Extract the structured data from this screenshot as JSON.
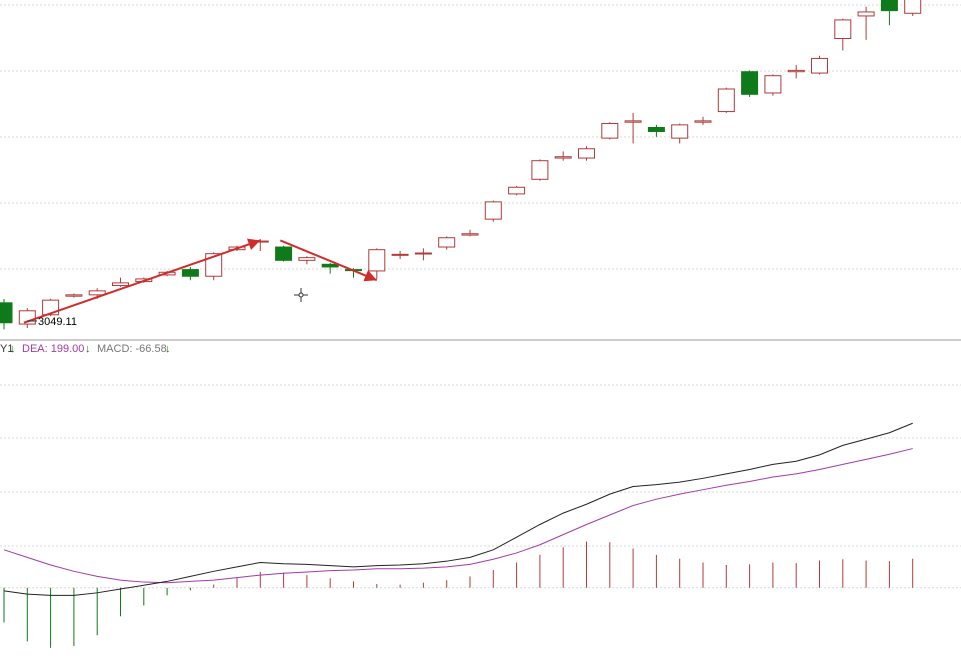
{
  "colors": {
    "up": "#b03a3a",
    "down": "#0f7a1a",
    "arrow": "#d22b2b",
    "dif_line": "#222222",
    "dea_line": "#a23aa8",
    "grid": "#d8d8d8",
    "divider": "#999999",
    "label_gray": "#777777",
    "dea_label": "#a23aa8"
  },
  "indicator_bar": {
    "dif_fragment": "Y1",
    "dea_text": "DEA: 199.00",
    "macd_text": "MACD: -66.58",
    "arrow_glyph": "↓"
  },
  "price_annotation": "3049.11",
  "crosshair_icon": "crosshair-icon",
  "chart_data": [
    {
      "type": "candlestick",
      "title": "",
      "annotations": [
        "3049.11"
      ],
      "candles": [
        {
          "o": 3064,
          "c": 3049,
          "h": 3067,
          "l": 3044
        },
        {
          "o": 3048,
          "c": 3058,
          "h": 3060,
          "l": 3045
        },
        {
          "o": 3055,
          "c": 3066,
          "h": 3067,
          "l": 3054
        },
        {
          "o": 3069,
          "c": 3070,
          "h": 3071,
          "l": 3068
        },
        {
          "o": 3070,
          "c": 3073,
          "h": 3075,
          "l": 3067
        },
        {
          "o": 3077,
          "c": 3079,
          "h": 3083,
          "l": 3076
        },
        {
          "o": 3080,
          "c": 3082,
          "h": 3083,
          "l": 3079
        },
        {
          "o": 3085,
          "c": 3087,
          "h": 3088,
          "l": 3084
        },
        {
          "o": 3089,
          "c": 3084,
          "h": 3091,
          "l": 3081
        },
        {
          "o": 3084,
          "c": 3101,
          "h": 3102,
          "l": 3081
        },
        {
          "o": 3104,
          "c": 3106,
          "h": 3107,
          "l": 3103
        },
        {
          "o": 3110,
          "c": 3110.5,
          "h": 3112,
          "l": 3103
        },
        {
          "o": 3106,
          "c": 3096,
          "h": 3107,
          "l": 3095
        },
        {
          "o": 3096,
          "c": 3098,
          "h": 3099,
          "l": 3093
        },
        {
          "o": 3093,
          "c": 3091,
          "h": 3094,
          "l": 3086
        },
        {
          "o": 3089,
          "c": 3088.5,
          "h": 3090,
          "l": 3083
        },
        {
          "o": 3088,
          "c": 3104,
          "h": 3105,
          "l": 3082
        },
        {
          "o": 3100,
          "c": 3100.5,
          "h": 3103,
          "l": 3097
        },
        {
          "o": 3101,
          "c": 3101.5,
          "h": 3105,
          "l": 3096
        },
        {
          "o": 3106,
          "c": 3113,
          "h": 3114,
          "l": 3104
        },
        {
          "o": 3115,
          "c": 3116,
          "h": 3119,
          "l": 3114
        },
        {
          "o": 3127,
          "c": 3140,
          "h": 3141,
          "l": 3125
        },
        {
          "o": 3146,
          "c": 3151,
          "h": 3152,
          "l": 3145
        },
        {
          "o": 3157,
          "c": 3171,
          "h": 3172,
          "l": 3156
        },
        {
          "o": 3173,
          "c": 3174,
          "h": 3178,
          "l": 3171
        },
        {
          "o": 3173,
          "c": 3180,
          "h": 3182,
          "l": 3171
        },
        {
          "o": 3188,
          "c": 3199,
          "h": 3200,
          "l": 3187
        },
        {
          "o": 3200,
          "c": 3201,
          "h": 3207,
          "l": 3184
        },
        {
          "o": 3196,
          "c": 3193,
          "h": 3198,
          "l": 3189
        },
        {
          "o": 3188,
          "c": 3198,
          "h": 3199,
          "l": 3184
        },
        {
          "o": 3200,
          "c": 3201,
          "h": 3204,
          "l": 3198
        },
        {
          "o": 3208,
          "c": 3225,
          "h": 3226,
          "l": 3207
        },
        {
          "o": 3238,
          "c": 3221,
          "h": 3239,
          "l": 3219
        },
        {
          "o": 3222,
          "c": 3235,
          "h": 3236,
          "l": 3220
        },
        {
          "o": 3238,
          "c": 3239,
          "h": 3243,
          "l": 3233
        },
        {
          "o": 3237,
          "c": 3248,
          "h": 3250,
          "l": 3236
        },
        {
          "o": 3263,
          "c": 3277,
          "h": 3278,
          "l": 3254
        },
        {
          "o": 3280,
          "c": 3283,
          "h": 3287,
          "l": 3262
        },
        {
          "o": 3293,
          "c": 3284,
          "h": 3296,
          "l": 3273
        },
        {
          "o": 3282,
          "c": 3302,
          "h": 3307,
          "l": 3280
        }
      ],
      "ylim": [
        3036,
        3292
      ],
      "grid": "horizontal",
      "arrows": [
        {
          "from": {
            "i": 0,
            "y": 3049
          },
          "to": {
            "i": 11,
            "y": 3111
          }
        },
        {
          "from": {
            "i": 11,
            "y": 3111
          },
          "to": {
            "i": 16,
            "y": 3081
          }
        }
      ]
    },
    {
      "type": "macd",
      "series": [
        {
          "name": "DEA",
          "values": [
            60,
            48,
            36,
            26,
            18,
            12,
            9,
            8,
            10,
            12,
            16,
            20,
            23,
            25,
            27,
            28,
            30,
            30,
            31,
            33,
            37,
            45,
            55,
            68,
            84,
            100,
            115,
            130,
            140,
            148,
            155,
            162,
            168,
            175,
            180,
            187,
            195,
            203,
            211,
            220
          ]
        },
        {
          "values": [
            -5,
            -10,
            -12,
            -12,
            -8,
            -2,
            4,
            10,
            18,
            26,
            33,
            40,
            38,
            37,
            35,
            33,
            35,
            36,
            38,
            42,
            48,
            60,
            80,
            100,
            118,
            132,
            148,
            160,
            163,
            167,
            173,
            180,
            187,
            195,
            200,
            210,
            225,
            235,
            245,
            260
          ]
        }
      ],
      "histogram": [
        -55,
        -85,
        -95,
        -92,
        -75,
        -45,
        -28,
        -12,
        -4,
        5,
        15,
        25,
        24,
        20,
        15,
        10,
        6,
        5,
        8,
        12,
        18,
        28,
        40,
        52,
        64,
        73,
        72,
        62,
        52,
        46,
        40,
        36,
        37,
        40,
        39,
        43,
        45,
        43,
        42,
        46
      ],
      "ylim": [
        -130,
        360
      ],
      "zero": 0
    }
  ]
}
